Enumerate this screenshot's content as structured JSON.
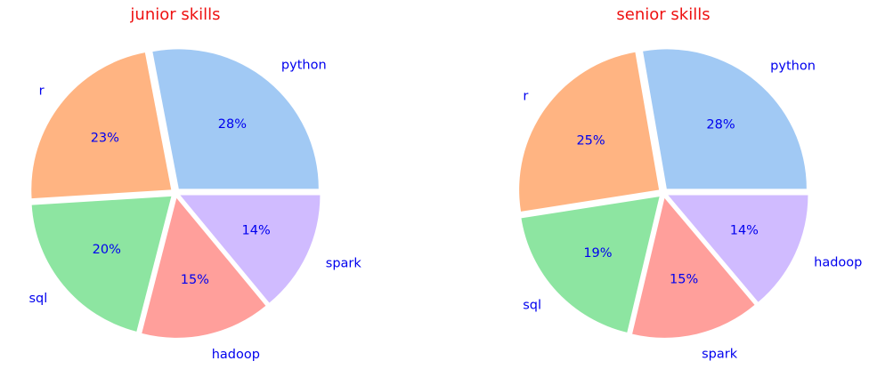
{
  "chart_data": [
    {
      "type": "pie",
      "title": "junior skills",
      "labels": [
        "python",
        "r",
        "sql",
        "hadoop",
        "spark"
      ],
      "values": [
        28,
        23,
        20,
        15,
        14
      ],
      "value_labels": [
        "28%",
        "23%",
        "20%",
        "15%",
        "14%"
      ],
      "colors": [
        "#a1c9f4",
        "#ffb482",
        "#8de5a1",
        "#ff9f9b",
        "#d0bbff"
      ],
      "exploded": true,
      "start": "right, counter-clockwise"
    },
    {
      "type": "pie",
      "title": "senior skills",
      "labels": [
        "python",
        "r",
        "sql",
        "spark",
        "hadoop"
      ],
      "values": [
        28,
        25,
        19,
        15,
        14
      ],
      "value_labels": [
        "28%",
        "25%",
        "19%",
        "15%",
        "14%"
      ],
      "colors": [
        "#a1c9f4",
        "#ffb482",
        "#8de5a1",
        "#ff9f9b",
        "#d0bbff"
      ],
      "exploded": true,
      "start": "right, counter-clockwise"
    }
  ],
  "theme": {
    "title_color": "#ee1111",
    "label_color": "#0000ee"
  }
}
